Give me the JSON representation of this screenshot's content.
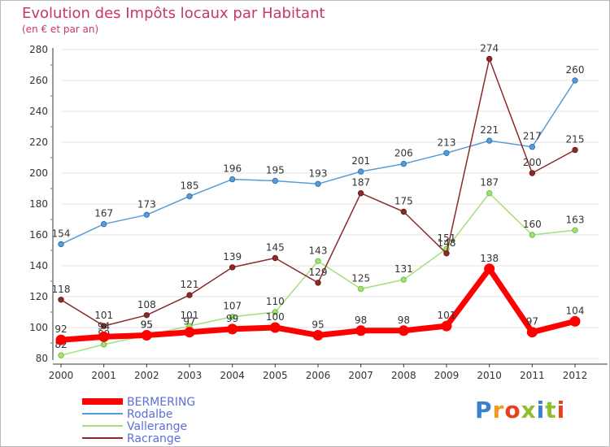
{
  "title": "Evolution des Impôts locaux par Habitant",
  "subtitle": "(en € et par an)",
  "logo": {
    "text": "Proxiti",
    "colors": [
      "#3a7fd0",
      "#f39a1c",
      "#e8411f",
      "#8fbf2d",
      "#3a7fd0",
      "#8fbf2d",
      "#e8411f"
    ]
  },
  "chart_data": {
    "type": "line",
    "x": [
      "2000",
      "2001",
      "2002",
      "2003",
      "2004",
      "2005",
      "2006",
      "2007",
      "2008",
      "2009",
      "2010",
      "2011",
      "2012"
    ],
    "ylim": [
      80,
      280
    ],
    "yticks": [
      80,
      100,
      120,
      140,
      160,
      180,
      200,
      220,
      240,
      260,
      280
    ],
    "series": [
      {
        "name": "Rodalbe",
        "color": "#5b9bd5",
        "marker": "#2e75b6",
        "values": [
          154,
          167,
          173,
          185,
          196,
          195,
          193,
          201,
          206,
          213,
          221,
          217,
          260
        ]
      },
      {
        "name": "Vallerange",
        "color": "#a3e07a",
        "marker": "#70c040",
        "values": [
          82,
          89,
          95,
          101,
          107,
          110,
          143,
          125,
          131,
          151,
          187,
          160,
          163
        ]
      },
      {
        "name": "Racrange",
        "color": "#8b2a2a",
        "marker": "#6b1a1a",
        "values": [
          118,
          101,
          108,
          121,
          139,
          145,
          129,
          187,
          175,
          148,
          274,
          200,
          215
        ]
      },
      {
        "name": "BERMERING",
        "color": "#ff0000",
        "marker": "#ff0000",
        "values": [
          92,
          94,
          95,
          97,
          99,
          100,
          95,
          98,
          98,
          101,
          138,
          97,
          104
        ]
      }
    ],
    "legend": [
      {
        "name": "BERMERING",
        "color": "#ff0000"
      },
      {
        "name": "Rodalbe",
        "color": "#5b9bd5"
      },
      {
        "name": "Vallerange",
        "color": "#a3e07a"
      },
      {
        "name": "Racrange",
        "color": "#8b2a2a"
      }
    ]
  }
}
